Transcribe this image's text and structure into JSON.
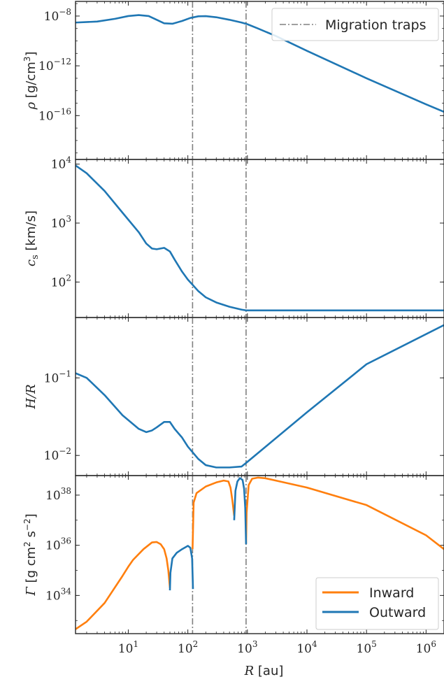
{
  "chart_data": {
    "type": "line",
    "x_axis": {
      "label_symbol": "R",
      "label_unit": "[au]",
      "scale": "log",
      "range": [
        1.3,
        2000000
      ],
      "ticks": [
        {
          "value": 10,
          "base": "10",
          "exp": "1"
        },
        {
          "value": 100,
          "base": "10",
          "exp": "2"
        },
        {
          "value": 1000,
          "base": "10",
          "exp": "3"
        },
        {
          "value": 10000,
          "base": "10",
          "exp": "4"
        },
        {
          "value": 100000,
          "base": "10",
          "exp": "5"
        },
        {
          "value": 1000000,
          "base": "10",
          "exp": "6"
        }
      ]
    },
    "migration_traps": {
      "label": "Migration traps",
      "x": [
        120,
        950
      ],
      "color": "#808080"
    },
    "panels": [
      {
        "id": "density",
        "ylabel": {
          "symbol": "ρ",
          "unit_pre": "[g/cm",
          "unit_sup": "3",
          "unit_post": "]"
        },
        "yscale": "log",
        "ylim": [
          3e-20,
          1.5e-07
        ],
        "yticks": [
          {
            "value": 1e-08,
            "base": "10",
            "exp": "−8"
          },
          {
            "value": 1e-12,
            "base": "10",
            "exp": "−12"
          },
          {
            "value": 1e-16,
            "base": "10",
            "exp": "−16"
          }
        ],
        "series": [
          {
            "color": "#1f77b4",
            "points": [
              [
                1.3,
                3e-09
              ],
              [
                3,
                3.6e-09
              ],
              [
                6,
                6e-09
              ],
              [
                10,
                1e-08
              ],
              [
                15,
                1.2e-08
              ],
              [
                22,
                1e-08
              ],
              [
                30,
                5e-09
              ],
              [
                40,
                2.6e-09
              ],
              [
                55,
                2.4e-09
              ],
              [
                80,
                4e-09
              ],
              [
                110,
                7e-09
              ],
              [
                150,
                9.5e-09
              ],
              [
                200,
                9.8e-09
              ],
              [
                300,
                8e-09
              ],
              [
                500,
                5e-09
              ],
              [
                800,
                3e-09
              ],
              [
                1000,
                2.2e-09
              ],
              [
                1500,
                1e-09
              ],
              [
                3000,
                2.5e-10
              ],
              [
                10000,
                1.6e-11
              ],
              [
                100000,
                1e-13
              ],
              [
                1000000,
                8e-16
              ],
              [
                2000000,
                2e-16
              ]
            ]
          }
        ]
      },
      {
        "id": "sound-speed",
        "ylabel": {
          "symbol": "c",
          "sub": "s",
          "unit": "[km/s]"
        },
        "yscale": "log",
        "ylim": [
          25,
          12000
        ],
        "yticks": [
          {
            "value": 10000,
            "base": "10",
            "exp": "4"
          },
          {
            "value": 1000,
            "base": "10",
            "exp": "3"
          },
          {
            "value": 100,
            "base": "10",
            "exp": "2"
          }
        ],
        "series": [
          {
            "color": "#1f77b4",
            "points": [
              [
                1.3,
                9500
              ],
              [
                2,
                7000
              ],
              [
                4,
                3500
              ],
              [
                8,
                1500
              ],
              [
                15,
                700
              ],
              [
                20,
                450
              ],
              [
                25,
                370
              ],
              [
                30,
                360
              ],
              [
                40,
                380
              ],
              [
                50,
                330
              ],
              [
                60,
                240
              ],
              [
                80,
                150
              ],
              [
                100,
                110
              ],
              [
                120,
                90
              ],
              [
                150,
                70
              ],
              [
                200,
                55
              ],
              [
                300,
                45
              ],
              [
                500,
                38
              ],
              [
                800,
                34
              ],
              [
                950,
                33
              ],
              [
                2000000,
                33
              ]
            ]
          }
        ]
      },
      {
        "id": "aspect-ratio",
        "ylabel": {
          "symbol": "H/R"
        },
        "yscale": "log",
        "ylim": [
          0.0055,
          0.6
        ],
        "yticks": [
          {
            "value": 0.1,
            "base": "10",
            "exp": "−1"
          },
          {
            "value": 0.01,
            "base": "10",
            "exp": "−2"
          }
        ],
        "series": [
          {
            "color": "#1f77b4",
            "points": [
              [
                1.3,
                0.115
              ],
              [
                2,
                0.1
              ],
              [
                4,
                0.06
              ],
              [
                8,
                0.033
              ],
              [
                15,
                0.022
              ],
              [
                20,
                0.02
              ],
              [
                25,
                0.021
              ],
              [
                30,
                0.023
              ],
              [
                40,
                0.027
              ],
              [
                50,
                0.027
              ],
              [
                60,
                0.022
              ],
              [
                80,
                0.017
              ],
              [
                100,
                0.013
              ],
              [
                150,
                0.009
              ],
              [
                200,
                0.0075
              ],
              [
                300,
                0.007
              ],
              [
                500,
                0.007
              ],
              [
                800,
                0.0072
              ],
              [
                950,
                0.008
              ],
              [
                10000,
                0.036
              ],
              [
                100000,
                0.15
              ],
              [
                2000000,
                0.48
              ]
            ]
          }
        ]
      },
      {
        "id": "torque",
        "ylabel": {
          "symbol": "Γ",
          "unit_pre": "[g cm",
          "sup1": "2",
          "unit_mid": " s",
          "sup2": "−2",
          "unit_post": "]"
        },
        "yscale": "log",
        "ylim": [
          3e+32,
          6e+38
        ],
        "yticks": [
          {
            "value": 1e+38,
            "base": "10",
            "exp": "38"
          },
          {
            "value": 1e+36,
            "base": "10",
            "exp": "36"
          },
          {
            "value": 1e+34,
            "base": "10",
            "exp": "34"
          }
        ],
        "series": [
          {
            "name": "Inward",
            "color": "#ff7f0e",
            "segments": [
              [
                [
                  1.3,
                  4.5e+32
                ],
                [
                  2,
                  9e+32
                ],
                [
                  4,
                  5e+33
                ],
                [
                  8,
                  6e+34
                ],
                [
                  10,
                  1.4e+35
                ],
                [
                  12,
                  2.6e+35
                ],
                [
                  18,
                  7e+35
                ],
                [
                  25,
                  1.3e+36
                ],
                [
                  30,
                  1.35e+36
                ],
                [
                  35,
                  1.1e+36
                ],
                [
                  40,
                  7e+35
                ],
                [
                  44,
                  3e+35
                ],
                [
                  47,
                  1e+35
                ],
                [
                  50,
                  2e+34
                ]
              ],
              [
                [
                  120,
                  7e+35
                ],
                [
                  125,
                  5e+37
                ],
                [
                  140,
                  1.2e+38
                ],
                [
                  200,
                  2.2e+38
                ],
                [
                  300,
                  3.2e+38
                ],
                [
                  400,
                  3.8e+38
                ],
                [
                  480,
                  3.5e+38
                ],
                [
                  520,
                  2e+38
                ],
                [
                  560,
                  6e+37
                ],
                [
                  600,
                  1.5e+37
                ]
              ],
              [
                [
                  950,
                  1.2e+36
                ],
                [
                  970,
                  2e+37
                ],
                [
                  1050,
                  2.5e+38
                ],
                [
                  1200,
                  4.5e+38
                ],
                [
                  1500,
                  5e+38
                ],
                [
                  2000,
                  4.7e+38
                ],
                [
                  3000,
                  3.8e+38
                ],
                [
                  10000,
                  2e+38
                ],
                [
                  100000,
                  4e+37
                ],
                [
                  1000000,
                  2.5e+36
                ],
                [
                  2000000,
                  7e+35
                ]
              ]
            ]
          },
          {
            "name": "Outward",
            "color": "#1f77b4",
            "segments": [
              [
                [
                  50,
                  1.6e+34
                ],
                [
                  51,
                  8e+34
                ],
                [
                  55,
                  3e+35
                ],
                [
                  65,
                  5e+35
                ],
                [
                  80,
                  7e+35
                ],
                [
                  100,
                  9.5e+35
                ],
                [
                  110,
                  8e+35
                ],
                [
                  118,
                  3e+35
                ],
                [
                  122,
                  1.8e+34
                ]
              ],
              [
                [
                  600,
                  1e+37
                ],
                [
                  630,
                  1.5e+38
                ],
                [
                  680,
                  3.5e+38
                ],
                [
                  750,
                  4.8e+38
                ],
                [
                  830,
                  4e+38
                ],
                [
                  880,
                  1.8e+38
                ],
                [
                  920,
                  3e+37
                ],
                [
                  950,
                  1.1e+36
                ]
              ]
            ]
          }
        ]
      }
    ],
    "legend_top": {
      "entries": [
        {
          "label": "Migration traps"
        }
      ],
      "placement": "top-right"
    },
    "legend_bottom": {
      "entries": [
        {
          "label": "Inward"
        },
        {
          "label": "Outward"
        }
      ],
      "placement": "bottom-right"
    }
  }
}
